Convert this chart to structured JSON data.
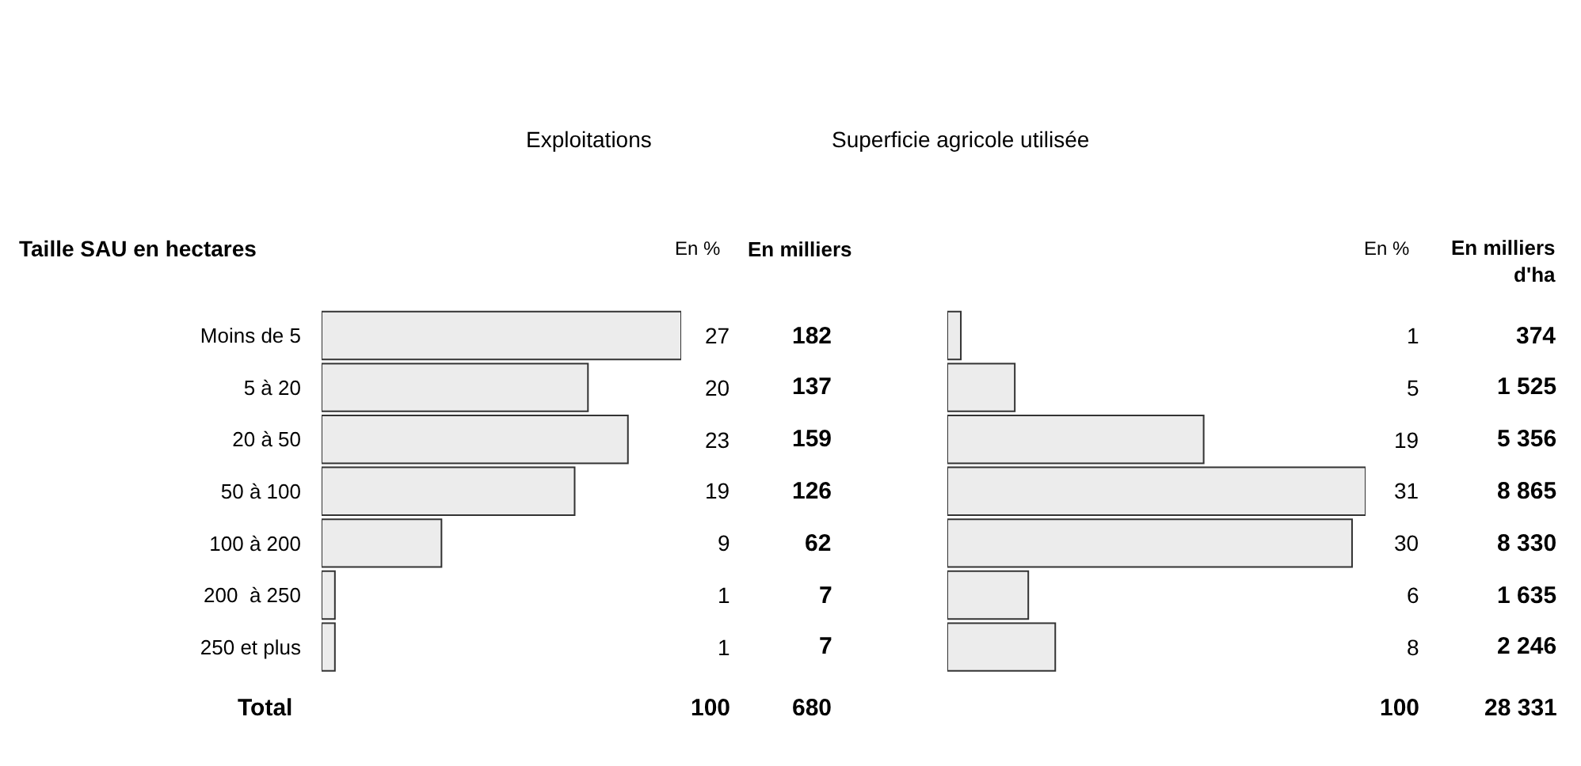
{
  "chart_data": [
    {
      "type": "bar",
      "orientation": "horizontal",
      "title": "Exploitations",
      "ylabel": "Taille SAU en hectares",
      "categories": [
        "Moins de 5",
        "5 à 20",
        "20 à 50",
        "50 à 100",
        "100 à 200",
        "200  à 250",
        "250 et plus"
      ],
      "values": [
        27,
        20,
        23,
        19,
        9,
        1,
        1
      ],
      "color": "#ececec",
      "data_labels": true,
      "annotations": [
        "En %",
        "En milliers",
        "182",
        "137",
        "159",
        "126",
        "62",
        "7",
        "7",
        "Total",
        "100",
        "680"
      ]
    },
    {
      "type": "bar",
      "orientation": "horizontal",
      "title": "Superficie agricole utilisée",
      "categories": [
        null,
        null,
        null,
        null,
        null,
        null,
        null
      ],
      "values": [
        1,
        5,
        19,
        31,
        30,
        6,
        8
      ],
      "color": "#ececec",
      "data_labels": true,
      "annotations": [
        "En %",
        "En milliers d'ha",
        "374",
        "1 525",
        "5 356",
        "8 865",
        "8 330",
        "1 635",
        "2 246",
        "100",
        "28 331"
      ]
    }
  ]
}
